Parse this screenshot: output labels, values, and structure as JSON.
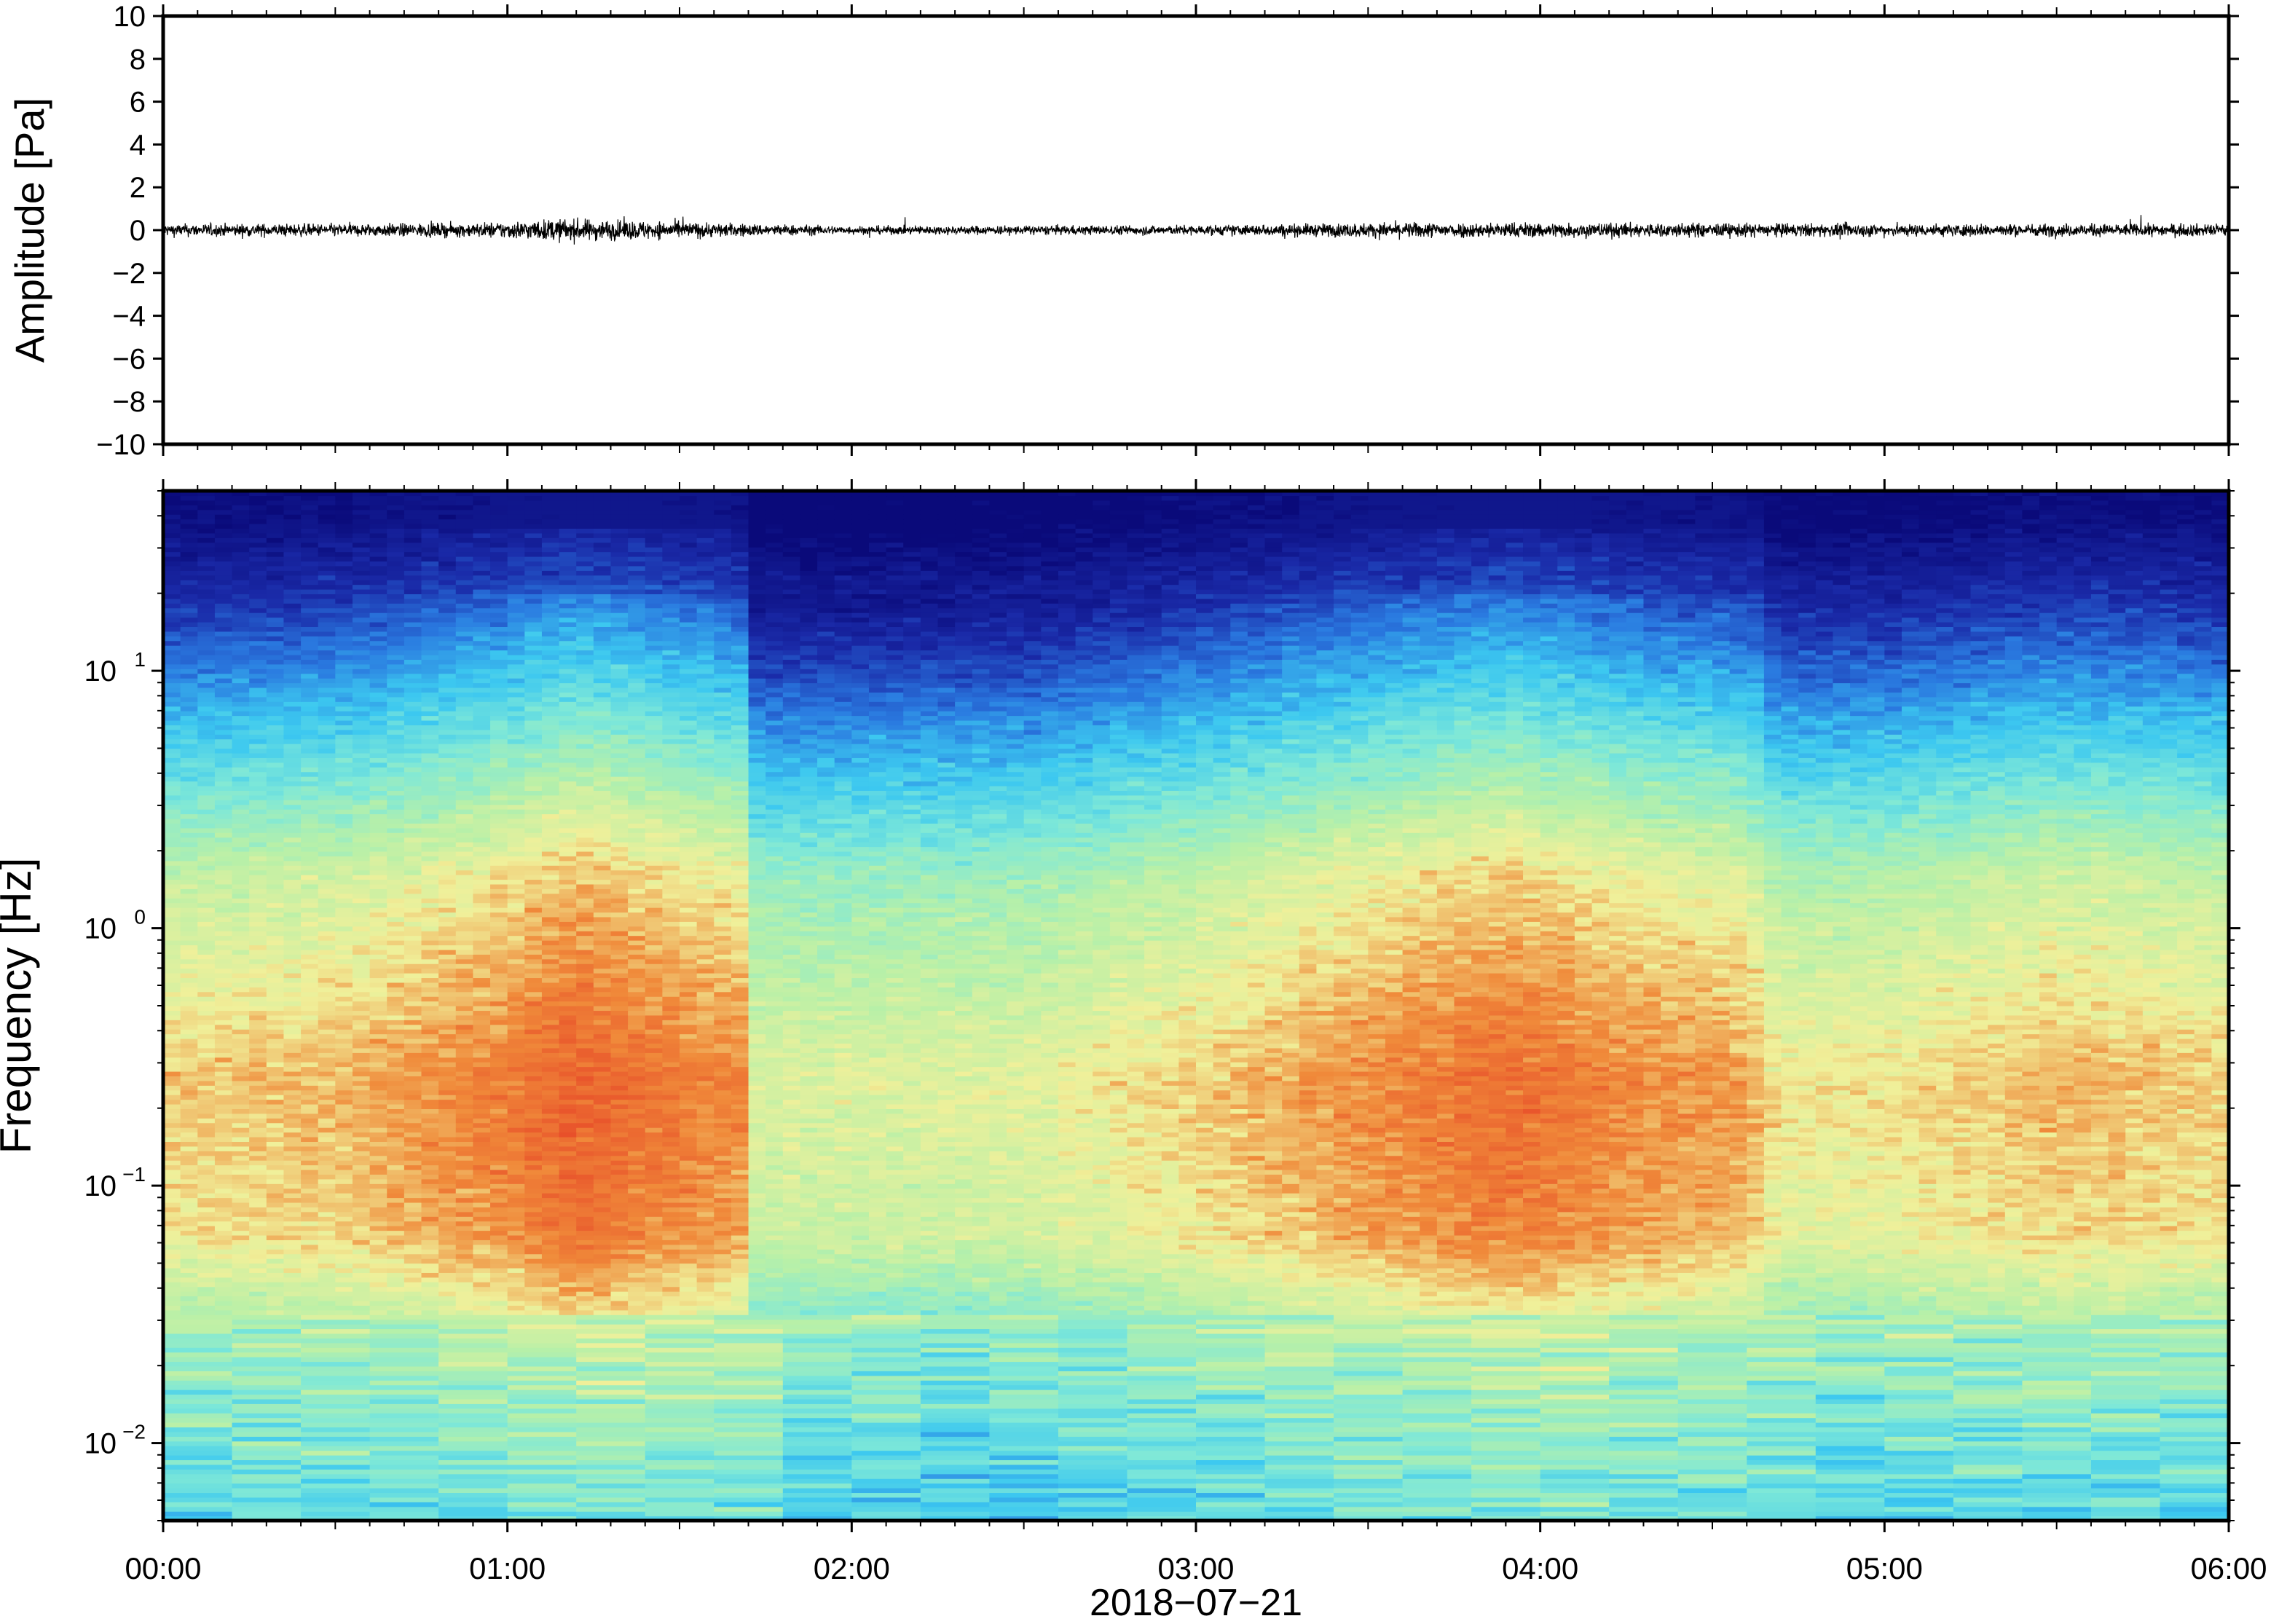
{
  "chart_data": [
    {
      "type": "line",
      "title": "",
      "xlabel": "",
      "ylabel": "Amplitude [Pa]",
      "ylim": [
        -10,
        10
      ],
      "yticks": [
        -10,
        -8,
        -6,
        -4,
        -2,
        0,
        2,
        4,
        6,
        8,
        10
      ],
      "ytick_labels": [
        "−10",
        "−8",
        "−6",
        "−4",
        "−2",
        "0",
        "2",
        "4",
        "6",
        "8",
        "10"
      ],
      "xlim_hours": [
        0,
        6
      ],
      "grid": false,
      "series": [
        {
          "color": "#000000",
          "description_values": {
            "typical_peak_amplitude_pa": 0.5,
            "max_peak_amplitude_pa": 1.2,
            "envelope_hours": [
              0,
              0.5,
              0.9,
              1.15,
              1.35,
              1.7,
              2.0,
              3.0,
              3.6,
              4.0,
              4.5,
              5.0,
              5.5,
              6.0
            ],
            "envelope_pa": [
              0.45,
              0.45,
              0.5,
              0.8,
              0.7,
              0.45,
              0.3,
              0.35,
              0.55,
              0.55,
              0.5,
              0.45,
              0.45,
              0.45
            ]
          }
        }
      ]
    },
    {
      "type": "heatmap",
      "title": "",
      "xlabel": "2018−07−21",
      "ylabel": "Frequency [Hz]",
      "yscale": "log",
      "ylim": [
        0.005,
        50
      ],
      "yticks": [
        0.01,
        0.1,
        1,
        10
      ],
      "ytick_labels": [
        {
          "base": "10",
          "exp": "−2"
        },
        {
          "base": "10",
          "exp": "−1"
        },
        {
          "base": "10",
          "exp": "0"
        },
        {
          "base": "10",
          "exp": "1"
        }
      ],
      "xlim_hours": [
        0,
        6
      ],
      "xticks_hours": [
        0,
        1,
        2,
        3,
        4,
        5,
        6
      ],
      "xtick_labels": [
        "00:00",
        "01:00",
        "02:00",
        "03:00",
        "04:00",
        "05:00",
        "06:00"
      ],
      "colormap": "jet-like",
      "colors": {
        "low": "#0a0a7a",
        "mid_low": "#2a7ae0",
        "mid": "#7ee8d8",
        "mid_high": "#f0f09a",
        "high": "#f08a3a",
        "peak": "#e8502a"
      },
      "column_energy_hours": [
        0,
        0.5,
        1.0,
        1.2,
        1.5,
        1.7,
        1.72,
        2.0,
        2.5,
        3.0,
        3.5,
        3.9,
        4.3,
        4.6,
        4.7,
        5.0,
        5.5,
        6.0
      ],
      "column_energy_level": [
        0.45,
        0.5,
        0.65,
        0.75,
        0.65,
        0.6,
        0.3,
        0.3,
        0.32,
        0.45,
        0.6,
        0.7,
        0.6,
        0.55,
        0.38,
        0.4,
        0.5,
        0.45
      ],
      "grid": false
    }
  ],
  "date_label": "2018−07−21"
}
